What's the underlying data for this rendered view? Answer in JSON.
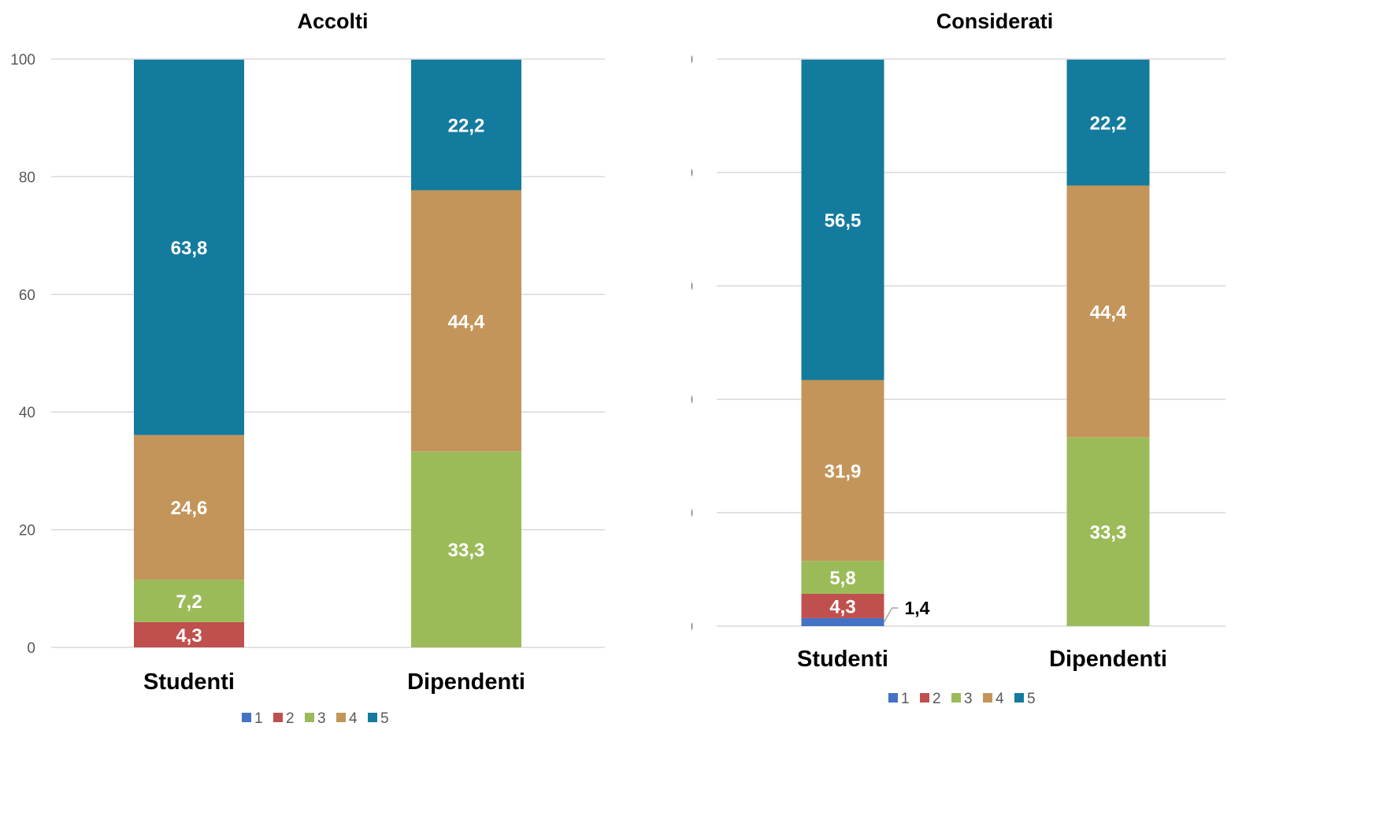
{
  "chart_data": [
    {
      "type": "bar",
      "stacked": true,
      "title": "Accolti",
      "categories": [
        "Studenti",
        "Dipendenti"
      ],
      "ylim": [
        0,
        100
      ],
      "yticks": [
        0,
        20,
        40,
        60,
        80,
        100
      ],
      "grid": true,
      "legend_position": "bottom",
      "series": [
        {
          "name": "1",
          "color": "#4472C4",
          "values": [
            0,
            0
          ],
          "labels": [
            "",
            ""
          ]
        },
        {
          "name": "2",
          "color": "#C0504D",
          "values": [
            4.3,
            0
          ],
          "labels": [
            "4,3",
            ""
          ]
        },
        {
          "name": "3",
          "color": "#9BBB59",
          "values": [
            7.2,
            33.3
          ],
          "labels": [
            "7,2",
            "33,3"
          ]
        },
        {
          "name": "4",
          "color": "#C4955A",
          "values": [
            24.6,
            44.4
          ],
          "labels": [
            "24,6",
            "44,4"
          ]
        },
        {
          "name": "5",
          "color": "#137B9E",
          "values": [
            63.8,
            22.2
          ],
          "labels": [
            "63,8",
            "22,2"
          ]
        }
      ]
    },
    {
      "type": "bar",
      "stacked": true,
      "title": "Considerati",
      "categories": [
        "Studenti",
        "Dipendenti"
      ],
      "ylim": [
        0,
        100
      ],
      "yticks": [
        0,
        20,
        40,
        60,
        80,
        100
      ],
      "grid": true,
      "legend_position": "bottom",
      "series": [
        {
          "name": "1",
          "color": "#4472C4",
          "values": [
            1.4,
            0
          ],
          "labels": [
            "1,4",
            ""
          ],
          "label_outside": true
        },
        {
          "name": "2",
          "color": "#C0504D",
          "values": [
            4.3,
            0
          ],
          "labels": [
            "4,3",
            ""
          ]
        },
        {
          "name": "3",
          "color": "#9BBB59",
          "values": [
            5.8,
            33.3
          ],
          "labels": [
            "5,8",
            "33,3"
          ]
        },
        {
          "name": "4",
          "color": "#C4955A",
          "values": [
            31.9,
            44.4
          ],
          "labels": [
            "31,9",
            "44,4"
          ]
        },
        {
          "name": "5",
          "color": "#137B9E",
          "values": [
            56.5,
            22.2
          ],
          "labels": [
            "56,5",
            "22,2"
          ]
        }
      ]
    }
  ]
}
